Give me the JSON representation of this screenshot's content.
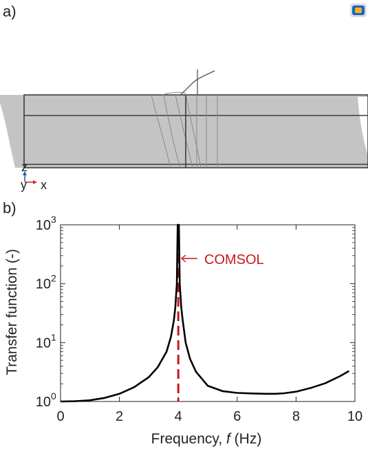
{
  "panel_a": {
    "label": "a)",
    "axis_triad": {
      "z": "z",
      "y": "y",
      "x": "x"
    },
    "logo": "app-logo-icon"
  },
  "panel_b": {
    "label": "b)"
  },
  "colors": {
    "curve": "#000000",
    "marker": "#c8161d",
    "geometry_fill": "#c4c4c4",
    "geometry_edge": "#3c3c3c",
    "triad_z": "#2a5db0",
    "triad_x": "#d62a2a"
  },
  "chart_data": {
    "type": "line",
    "title": "",
    "xlabel": "Frequency, f (Hz)",
    "ylabel": "Transfer function (-)",
    "xlim": [
      0,
      10
    ],
    "ylim": [
      1,
      1000
    ],
    "y_scale": "log",
    "grid": false,
    "x_ticks": [
      "0",
      "2",
      "4",
      "6",
      "8",
      "10"
    ],
    "y_ticks": [
      {
        "base": "10",
        "exp": "0"
      },
      {
        "base": "10",
        "exp": "1"
      },
      {
        "base": "10",
        "exp": "2"
      },
      {
        "base": "10",
        "exp": "3"
      }
    ],
    "series": [
      {
        "style": "solid",
        "x": [
          0,
          0.5,
          1,
          1.5,
          2,
          2.5,
          3,
          3.3,
          3.6,
          3.75,
          3.85,
          3.9,
          3.95,
          3.98,
          4.02,
          4.05,
          4.1,
          4.15,
          4.25,
          4.4,
          4.6,
          5.0,
          5.5,
          6.0,
          6.5,
          7.0,
          7.3,
          7.6,
          8.0,
          8.5,
          9.0,
          9.5,
          9.8
        ],
        "y": [
          1.0,
          1.01,
          1.05,
          1.15,
          1.35,
          1.75,
          2.6,
          3.8,
          7.0,
          12.5,
          24,
          40,
          100,
          1000,
          1000,
          100,
          40,
          24,
          10,
          5.3,
          3.2,
          1.85,
          1.5,
          1.4,
          1.37,
          1.35,
          1.35,
          1.38,
          1.47,
          1.7,
          2.05,
          2.7,
          3.3
        ]
      }
    ],
    "reference_line": {
      "x": 4.0,
      "style": "dashed",
      "label": "COMSOL"
    }
  }
}
